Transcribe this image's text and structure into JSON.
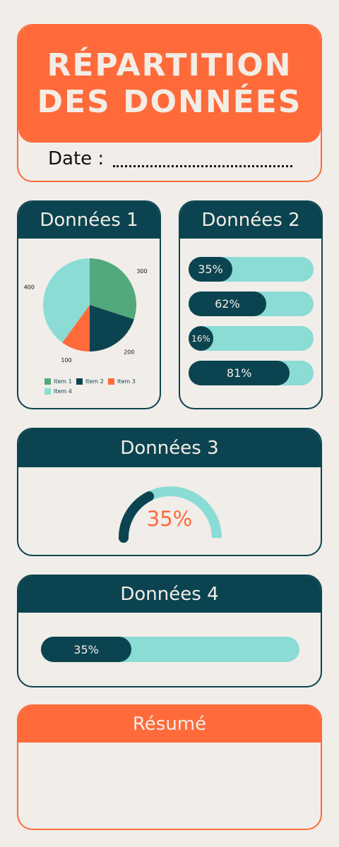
{
  "title": {
    "line1": "RÉPARTITION",
    "line2": "DES DONNÉES"
  },
  "date": {
    "label": "Date :"
  },
  "colors": {
    "orange": "#ff6a3a",
    "teal_dark": "#0b4450",
    "teal_light": "#8adcd5",
    "green": "#52a97b",
    "background": "#f1ede9"
  },
  "card1": {
    "header": "Données 1",
    "chart_data": {
      "type": "pie",
      "categories": [
        "Item 1",
        "Item 2",
        "Item 3",
        "Item 4"
      ],
      "values": [
        300,
        200,
        100,
        400
      ],
      "colors": [
        "#52a97b",
        "#0b4450",
        "#ff6a3a",
        "#8adcd5"
      ],
      "legend": "bottom"
    },
    "value_labels": [
      "300",
      "200",
      "100",
      "400"
    ],
    "legend_labels": [
      "Item 1",
      "Item 2",
      "Item 3",
      "Item 4"
    ]
  },
  "card2": {
    "header": "Données 2",
    "bars": [
      {
        "label": "35%",
        "value": 0.35
      },
      {
        "label": "62%",
        "value": 0.62
      },
      {
        "label": "16%",
        "value": 0.16
      },
      {
        "label": "81%",
        "value": 0.81
      }
    ]
  },
  "card3": {
    "header": "Données 3",
    "gauge_label": "35%",
    "gauge_value": 0.35
  },
  "card4": {
    "header": "Données 4",
    "bar_label": "35%",
    "bar_value": 0.35
  },
  "card5": {
    "header": "Résumé"
  }
}
